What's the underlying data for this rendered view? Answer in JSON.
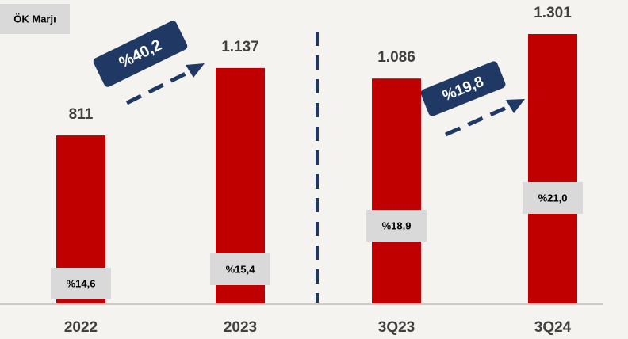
{
  "chart_data": {
    "type": "bar",
    "legend_label": "ÖK Marjı",
    "categories": [
      "2022",
      "2023",
      "3Q23",
      "3Q24"
    ],
    "values": [
      811,
      1137,
      1086,
      1301
    ],
    "value_labels": [
      "811",
      "1.137",
      "1.086",
      "1.301"
    ],
    "margin_labels": [
      "%14,6",
      "%15,4",
      "%18,9",
      "%21,0"
    ],
    "growth_labels": [
      "%40,2",
      "%19,8"
    ],
    "color": "#c00000"
  }
}
